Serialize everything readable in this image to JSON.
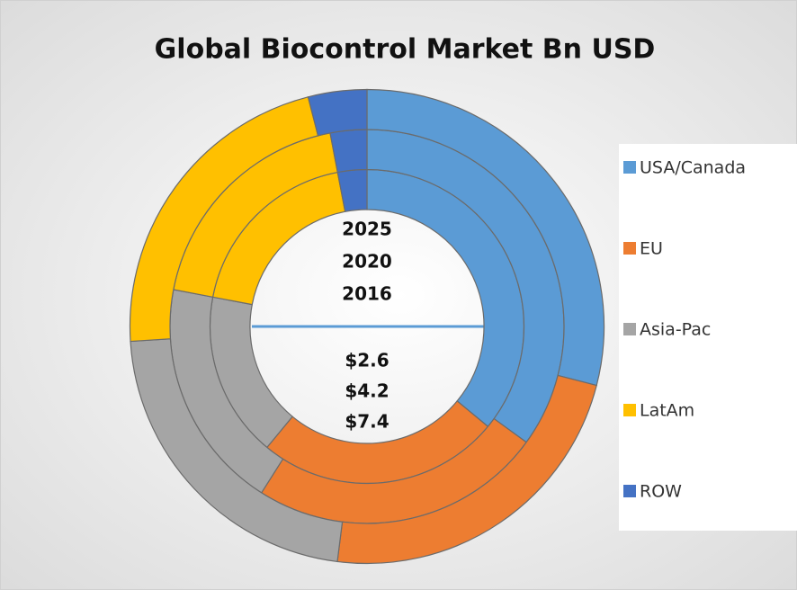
{
  "chart_data": {
    "type": "multi-donut",
    "title": "Global Biocontrol Market Bn USD",
    "categories": [
      "USA/Canada",
      "EU",
      "Asia-Pac",
      "LatAm",
      "ROW"
    ],
    "colors": [
      "#5b9bd5",
      "#ed7d31",
      "#a5a5a5",
      "#ffc000",
      "#4472c4"
    ],
    "series": [
      {
        "name": "2016",
        "values": [
          36,
          25,
          17,
          19,
          3
        ]
      },
      {
        "name": "2020",
        "values": [
          35,
          24,
          19,
          19,
          3
        ]
      },
      {
        "name": "2025",
        "values": [
          29,
          23,
          22,
          22,
          4
        ]
      }
    ],
    "center_labels": [
      "$2.6",
      "$4.2",
      "$7.4"
    ],
    "legend": "right"
  }
}
